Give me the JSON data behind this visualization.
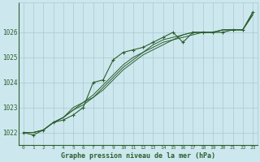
{
  "title": "Graphe pression niveau de la mer (hPa)",
  "bg_color": "#cce8ee",
  "grid_color": "#aac8d0",
  "line_color": "#2d5e2d",
  "marker_color": "#2d5e2d",
  "xlim": [
    -0.5,
    23.5
  ],
  "ylim": [
    1021.5,
    1027.2
  ],
  "yticks": [
    1022,
    1023,
    1024,
    1025,
    1026
  ],
  "xticks": [
    0,
    1,
    2,
    3,
    4,
    5,
    6,
    7,
    8,
    9,
    10,
    11,
    12,
    13,
    14,
    15,
    16,
    17,
    18,
    19,
    20,
    21,
    22,
    23
  ],
  "series_smooth": [
    [
      1022.0,
      1022.0,
      1022.1,
      1022.4,
      1022.6,
      1022.9,
      1023.1,
      1023.4,
      1023.7,
      1024.1,
      1024.5,
      1024.8,
      1025.1,
      1025.3,
      1025.5,
      1025.7,
      1025.8,
      1025.9,
      1026.0,
      1026.0,
      1026.1,
      1026.1,
      1026.1,
      1026.7
    ],
    [
      1022.0,
      1022.0,
      1022.1,
      1022.4,
      1022.6,
      1022.9,
      1023.2,
      1023.4,
      1023.8,
      1024.2,
      1024.6,
      1024.9,
      1025.2,
      1025.4,
      1025.6,
      1025.7,
      1025.9,
      1026.0,
      1026.0,
      1026.0,
      1026.1,
      1026.1,
      1026.1,
      1026.7
    ],
    [
      1022.0,
      1022.0,
      1022.1,
      1022.4,
      1022.6,
      1023.0,
      1023.2,
      1023.5,
      1023.9,
      1024.3,
      1024.7,
      1025.0,
      1025.2,
      1025.5,
      1025.7,
      1025.8,
      1025.9,
      1026.0,
      1026.0,
      1026.0,
      1026.1,
      1026.1,
      1026.1,
      1026.8
    ]
  ],
  "series_marker": [
    1022.0,
    1021.9,
    1022.1,
    1022.4,
    1022.5,
    1022.7,
    1023.0,
    1024.0,
    1024.1,
    1024.9,
    1025.2,
    1025.3,
    1025.4,
    1025.6,
    1025.8,
    1026.0,
    1025.6,
    1026.0,
    1026.0,
    1026.0,
    1026.0,
    1026.1,
    1026.1,
    1026.8
  ]
}
